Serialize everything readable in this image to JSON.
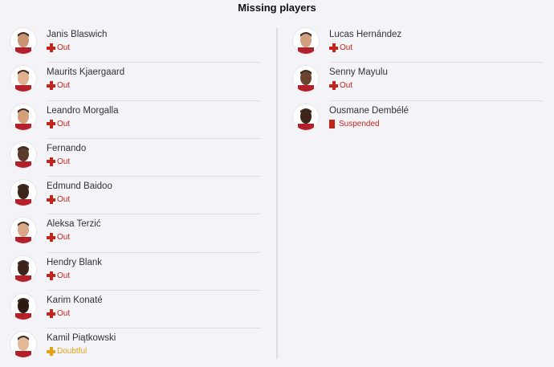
{
  "title": "Missing players",
  "colors": {
    "out": "#c0261b",
    "doubtful": "#e3a218",
    "suspended": "#c0261b"
  },
  "left": [
    {
      "name": "Janis Blaswich",
      "status": "Out",
      "type": "out",
      "icon": "injury-cross-icon"
    },
    {
      "name": "Maurits Kjaergaard",
      "status": "Out",
      "type": "out",
      "icon": "injury-cross-icon"
    },
    {
      "name": "Leandro Morgalla",
      "status": "Out",
      "type": "out",
      "icon": "injury-cross-icon"
    },
    {
      "name": "Fernando",
      "status": "Out",
      "type": "out",
      "icon": "injury-cross-icon"
    },
    {
      "name": "Edmund Baidoo",
      "status": "Out",
      "type": "out",
      "icon": "injury-cross-icon"
    },
    {
      "name": "Aleksa Terzić",
      "status": "Out",
      "type": "out",
      "icon": "injury-cross-icon"
    },
    {
      "name": "Hendry Blank",
      "status": "Out",
      "type": "out",
      "icon": "injury-cross-icon"
    },
    {
      "name": "Karim Konaté",
      "status": "Out",
      "type": "out",
      "icon": "injury-cross-icon"
    },
    {
      "name": "Kamil Piątkowski",
      "status": "Doubtful",
      "type": "doubtful",
      "icon": "injury-cross-icon"
    }
  ],
  "right": [
    {
      "name": "Lucas Hernández",
      "status": "Out",
      "type": "out",
      "icon": "injury-cross-icon"
    },
    {
      "name": "Senny Mayulu",
      "status": "Out",
      "type": "out",
      "icon": "injury-cross-icon"
    },
    {
      "name": "Ousmane Dembélé",
      "status": "Suspended",
      "type": "suspended",
      "icon": "red-card-icon"
    }
  ]
}
